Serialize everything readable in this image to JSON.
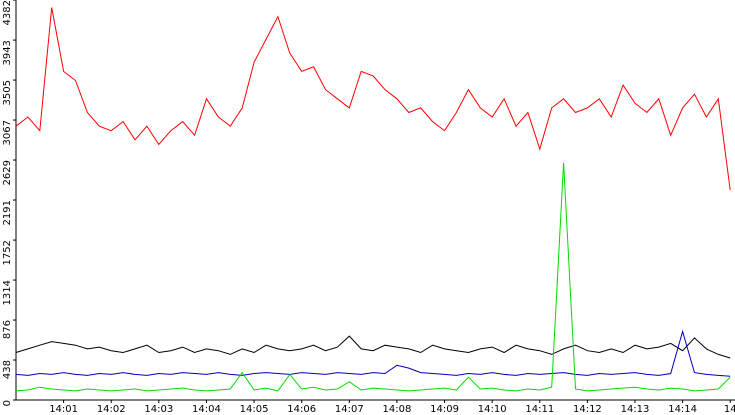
{
  "chart_data": {
    "type": "line",
    "x": [
      0,
      0.25,
      0.5,
      0.75,
      1,
      1.25,
      1.5,
      1.75,
      2,
      2.25,
      2.5,
      2.75,
      3,
      3.25,
      3.5,
      3.75,
      4,
      4.25,
      4.5,
      4.75,
      5,
      5.25,
      5.5,
      5.75,
      6,
      6.25,
      6.5,
      6.75,
      7,
      7.25,
      7.5,
      7.75,
      8,
      8.25,
      8.5,
      8.75,
      9,
      9.25,
      9.5,
      9.75,
      10,
      10.25,
      10.5,
      10.75,
      11,
      11.25,
      11.5,
      11.75,
      12,
      12.25,
      12.5,
      12.75,
      13,
      13.25,
      13.5,
      13.75,
      14,
      14.25,
      14.5,
      14.75,
      15
    ],
    "series": [
      {
        "color": "#ff0000",
        "values": [
          3000,
          3100,
          2950,
          4300,
          3600,
          3500,
          3150,
          3000,
          2950,
          3050,
          2850,
          3000,
          2800,
          2950,
          3050,
          2900,
          3300,
          3100,
          3000,
          3200,
          3700,
          3950,
          4200,
          3800,
          3600,
          3650,
          3400,
          3300,
          3200,
          3600,
          3550,
          3400,
          3300,
          3150,
          3200,
          3050,
          2950,
          3150,
          3400,
          3200,
          3100,
          3300,
          3000,
          3150,
          2750,
          3200,
          3300,
          3150,
          3200,
          3300,
          3100,
          3450,
          3250,
          3150,
          3300,
          2900,
          3200,
          3350,
          3100,
          3300,
          2300
        ]
      },
      {
        "color": "#000000",
        "values": [
          520,
          560,
          600,
          640,
          620,
          600,
          560,
          580,
          540,
          520,
          560,
          600,
          520,
          540,
          580,
          520,
          560,
          540,
          500,
          560,
          520,
          600,
          560,
          540,
          560,
          600,
          540,
          580,
          700,
          560,
          540,
          600,
          580,
          560,
          520,
          600,
          560,
          540,
          520,
          560,
          580,
          520,
          600,
          560,
          540,
          500,
          560,
          600,
          540,
          520,
          560,
          520,
          600,
          560,
          580,
          620,
          540,
          680,
          560,
          500,
          460
        ]
      },
      {
        "color": "#0000c0",
        "values": [
          280,
          270,
          290,
          280,
          300,
          280,
          270,
          290,
          280,
          300,
          280,
          270,
          290,
          280,
          300,
          290,
          280,
          300,
          280,
          270,
          290,
          300,
          290,
          280,
          300,
          290,
          280,
          300,
          290,
          280,
          300,
          290,
          380,
          350,
          300,
          290,
          280,
          270,
          290,
          280,
          300,
          280,
          270,
          290,
          280,
          290,
          300,
          280,
          270,
          290,
          280,
          290,
          300,
          280,
          270,
          290,
          750,
          300,
          280,
          270,
          260
        ]
      },
      {
        "color": "#00dd00",
        "values": [
          100,
          110,
          140,
          120,
          110,
          100,
          120,
          110,
          100,
          110,
          120,
          100,
          110,
          120,
          130,
          110,
          100,
          110,
          120,
          300,
          110,
          130,
          100,
          280,
          120,
          140,
          110,
          120,
          200,
          110,
          130,
          120,
          110,
          100,
          110,
          120,
          130,
          110,
          250,
          120,
          130,
          110,
          100,
          120,
          110,
          140,
          2600,
          120,
          100,
          110,
          120,
          130,
          140,
          120,
          110,
          130,
          120,
          100,
          110,
          120,
          250
        ]
      }
    ],
    "xlim": [
      0,
      15.1
    ],
    "xticks": [
      {
        "value": 1,
        "label": "14:01"
      },
      {
        "value": 2,
        "label": "14:02"
      },
      {
        "value": 3,
        "label": "14:03"
      },
      {
        "value": 4,
        "label": "14:04"
      },
      {
        "value": 5,
        "label": "14:05"
      },
      {
        "value": 6,
        "label": "14:06"
      },
      {
        "value": 7,
        "label": "14:07"
      },
      {
        "value": 8,
        "label": "14:08"
      },
      {
        "value": 9,
        "label": "14:09"
      },
      {
        "value": 10,
        "label": "14:10"
      },
      {
        "value": 11,
        "label": "14:11"
      },
      {
        "value": 12,
        "label": "14:12"
      },
      {
        "value": 13,
        "label": "14:13"
      },
      {
        "value": 14,
        "label": "14:14"
      },
      {
        "value": 15,
        "label": "14"
      }
    ],
    "ylim": [
      0,
      4382
    ],
    "yticks": [
      0,
      438,
      876,
      1314,
      1752,
      2191,
      2629,
      3067,
      3505,
      3943,
      4382
    ]
  }
}
